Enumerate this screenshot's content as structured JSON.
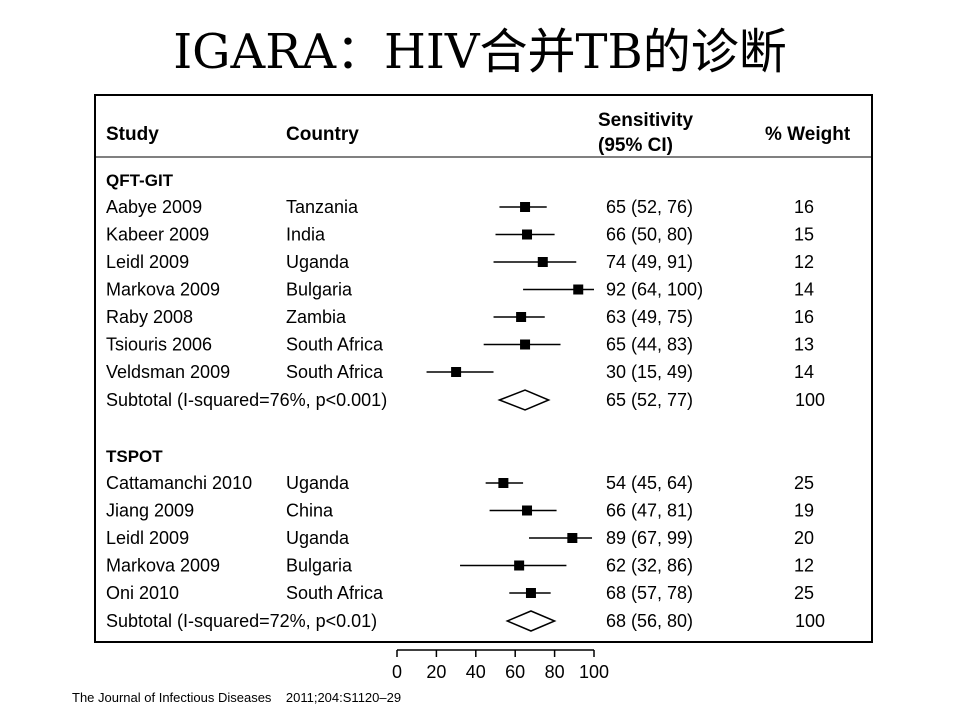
{
  "title": "IGARA：HIV合并TB的诊断",
  "headers": {
    "study": "Study",
    "country": "Country",
    "sens_line1": "Sensitivity",
    "sens_line2": "(95% CI)",
    "weight": "% Weight"
  },
  "citation": "The Journal of Infectious Diseases    2011;204:S1120–29",
  "chart_data": {
    "type": "forest",
    "xlim": [
      0,
      100
    ],
    "x_ticks": [
      0,
      20,
      40,
      60,
      80,
      100
    ],
    "groups": [
      {
        "name": "QFT-GIT",
        "studies": [
          {
            "study": "Aabye 2009",
            "country": "Tanzania",
            "est": 65,
            "lo": 52,
            "hi": 76,
            "ci_text": "65 (52, 76)",
            "weight": "16"
          },
          {
            "study": "Kabeer 2009",
            "country": "India",
            "est": 66,
            "lo": 50,
            "hi": 80,
            "ci_text": "66 (50, 80)",
            "weight": "15"
          },
          {
            "study": "Leidl 2009",
            "country": "Uganda",
            "est": 74,
            "lo": 49,
            "hi": 91,
            "ci_text": "74 (49, 91)",
            "weight": "12"
          },
          {
            "study": "Markova 2009",
            "country": "Bulgaria",
            "est": 92,
            "lo": 64,
            "hi": 100,
            "ci_text": "92 (64, 100)",
            "weight": "14"
          },
          {
            "study": "Raby 2008",
            "country": "Zambia",
            "est": 63,
            "lo": 49,
            "hi": 75,
            "ci_text": "63 (49, 75)",
            "weight": "16"
          },
          {
            "study": "Tsiouris 2006",
            "country": "South Africa",
            "est": 65,
            "lo": 44,
            "hi": 83,
            "ci_text": "65 (44, 83)",
            "weight": "13"
          },
          {
            "study": "Veldsman 2009",
            "country": "South Africa",
            "est": 30,
            "lo": 15,
            "hi": 49,
            "ci_text": "30 (15, 49)",
            "weight": "14"
          }
        ],
        "subtotal": {
          "label": "Subtotal (I-squared=76%, p<0.001)",
          "est": 65,
          "lo": 52,
          "hi": 77,
          "ci_text": "65 (52, 77)",
          "weight": "100"
        }
      },
      {
        "name": "TSPOT",
        "studies": [
          {
            "study": "Cattamanchi 2010",
            "country": "Uganda",
            "est": 54,
            "lo": 45,
            "hi": 64,
            "ci_text": "54 (45, 64)",
            "weight": "25"
          },
          {
            "study": "Jiang 2009",
            "country": "China",
            "est": 66,
            "lo": 47,
            "hi": 81,
            "ci_text": "66 (47, 81)",
            "weight": "19"
          },
          {
            "study": "Leidl 2009",
            "country": "Uganda",
            "est": 89,
            "lo": 67,
            "hi": 99,
            "ci_text": "89 (67, 99)",
            "weight": "20"
          },
          {
            "study": "Markova 2009",
            "country": "Bulgaria",
            "est": 62,
            "lo": 32,
            "hi": 86,
            "ci_text": "62 (32, 86)",
            "weight": "12"
          },
          {
            "study": "Oni 2010",
            "country": "South Africa",
            "est": 68,
            "lo": 57,
            "hi": 78,
            "ci_text": "68 (57, 78)",
            "weight": "25"
          }
        ],
        "subtotal": {
          "label": "Subtotal (I-squared=72%, p<0.01)",
          "est": 68,
          "lo": 56,
          "hi": 80,
          "ci_text": "68 (56, 80)",
          "weight": "100"
        }
      }
    ]
  }
}
